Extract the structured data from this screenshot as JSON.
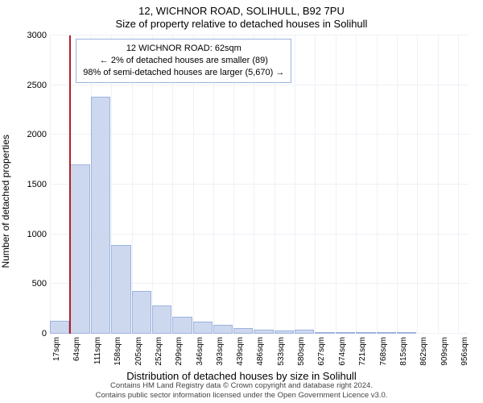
{
  "title": "12, WICHNOR ROAD, SOLIHULL, B92 7PU",
  "subtitle": "Size of property relative to detached houses in Solihull",
  "ylabel": "Number of detached properties",
  "xlabel": "Distribution of detached houses by size in Solihull",
  "footer1": "Contains HM Land Registry data © Crown copyright and database right 2024.",
  "footer2": "Contains public sector information licensed under the Open Government Licence v3.0.",
  "chart": {
    "type": "histogram",
    "xticks_sqm": [
      17,
      64,
      111,
      158,
      205,
      252,
      299,
      346,
      393,
      439,
      486,
      533,
      580,
      627,
      674,
      721,
      768,
      815,
      862,
      909,
      956
    ],
    "bar_values": [
      130,
      1700,
      2380,
      890,
      430,
      280,
      170,
      120,
      90,
      60,
      40,
      30,
      40,
      10,
      5,
      5,
      5,
      5,
      0,
      0,
      0
    ],
    "yticks": [
      0,
      500,
      1000,
      1500,
      2000,
      2500,
      3000
    ],
    "y_max": 3000,
    "x_min_sqm": 17,
    "x_max_sqm": 980,
    "marker_sqm": 62,
    "bar_fill": "#cdd8ef",
    "bar_stroke": "#9db3dd",
    "marker_color": "#b11f24",
    "grid_color": "#eef1f6",
    "background_color": "#ffffff",
    "title_fontsize": 13,
    "label_fontsize": 12,
    "tick_fontsize": 11
  },
  "info_box": {
    "line1": "12 WICHNOR ROAD: 62sqm",
    "line2": "← 2% of detached houses are smaller (89)",
    "line3": "98% of semi-detached houses are larger (5,670) →",
    "border_color": "#9db3dd",
    "bg_color": "#ffffff"
  }
}
